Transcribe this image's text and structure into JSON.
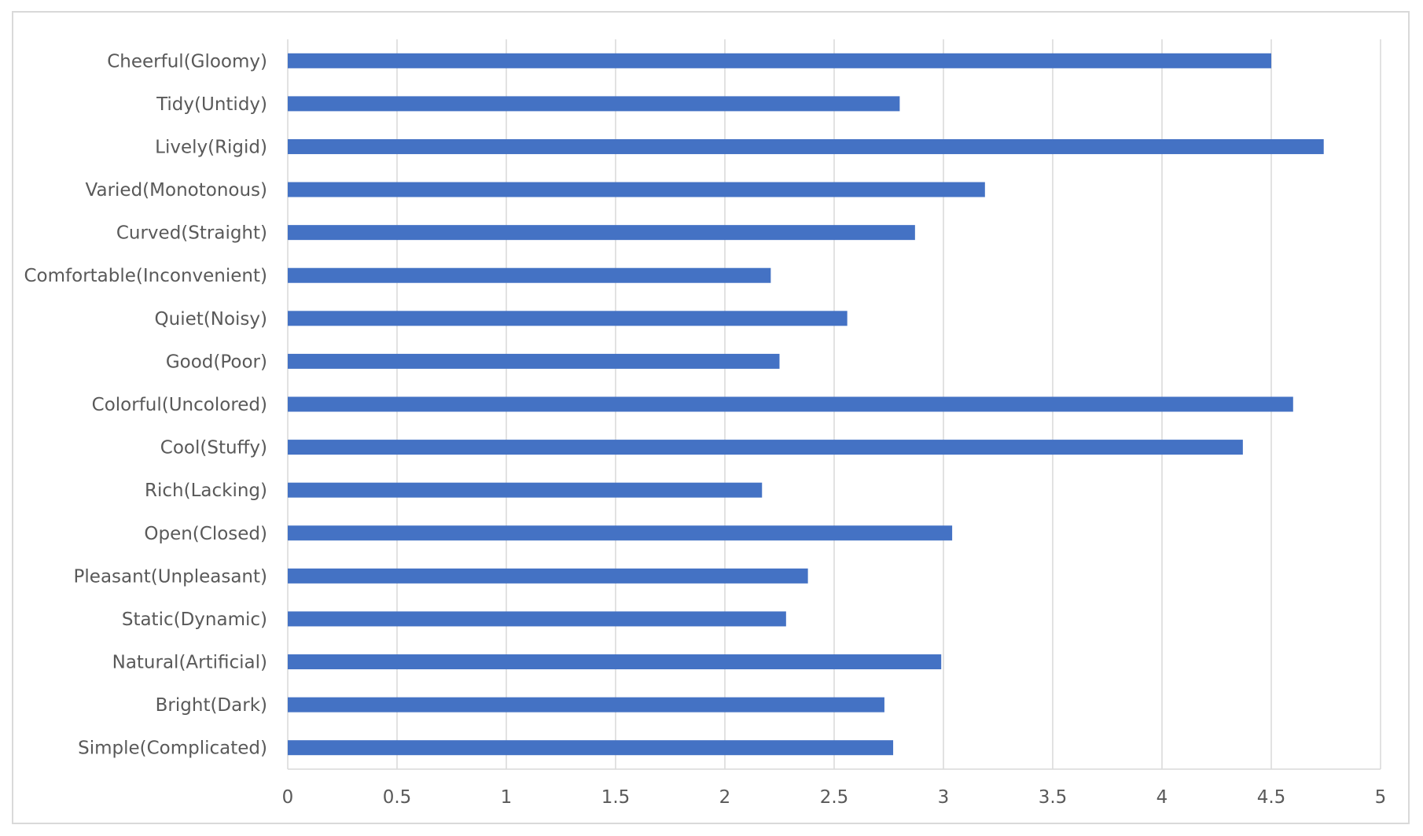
{
  "chart_data": {
    "type": "bar",
    "orientation": "horizontal",
    "title": "",
    "xlabel": "",
    "ylabel": "",
    "xlim": [
      0,
      5
    ],
    "x_ticks": [
      "0",
      "0.5",
      "1",
      "1.5",
      "2",
      "2.5",
      "3",
      "3.5",
      "4",
      "4.5",
      "5"
    ],
    "grid": "vertical",
    "legend": "none",
    "bar_color": "#4472C4",
    "gridline_color": "#d9d9d9",
    "label_color": "#595959",
    "categories": [
      "Cheerful(Gloomy)",
      "Tidy(Untidy)",
      "Lively(Rigid)",
      "Varied(Monotonous)",
      "Curved(Straight)",
      "Comfortable(Inconvenient)",
      "Quiet(Noisy)",
      "Good(Poor)",
      "Colorful(Uncolored)",
      "Cool(Stuffy)",
      "Rich(Lacking)",
      "Open(Closed)",
      "Pleasant(Unpleasant)",
      "Static(Dynamic)",
      "Natural(Artificial)",
      "Bright(Dark)",
      "Simple(Complicated)"
    ],
    "values": [
      4.5,
      2.8,
      4.74,
      3.19,
      2.87,
      2.21,
      2.56,
      2.25,
      4.6,
      4.37,
      2.17,
      3.04,
      2.38,
      2.28,
      2.99,
      2.73,
      2.77
    ]
  }
}
